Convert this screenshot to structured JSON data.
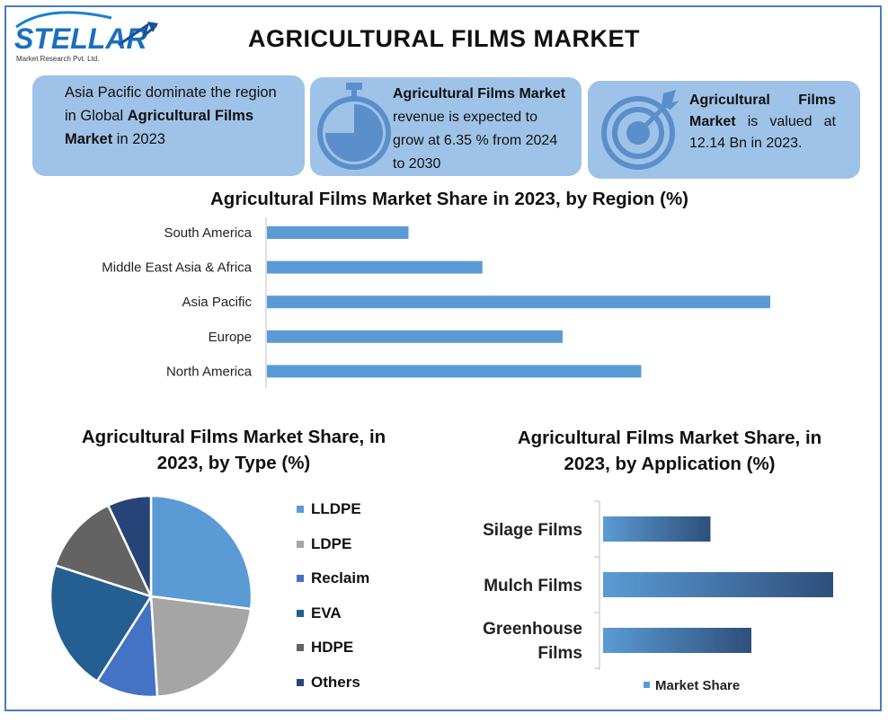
{
  "header": {
    "title": "AGRICULTURAL FILMS MARKET",
    "logo_text": "STELLAR",
    "logo_subtext": "Market Research Pvt. Ltd."
  },
  "cards": [
    {
      "pre": "Asia Pacific dominate the region in Global ",
      "bold": "Agricultural Films Market",
      "post": " in 2023"
    },
    {
      "bold": "Agricultural Films Market",
      "post": " revenue is expected to grow at 6.35 % from 2024 to 2030",
      "icon": "stopwatch-icon"
    },
    {
      "bold": "Agricultural Films Market",
      "post": " is valued at 12.14 Bn in 2023.",
      "icon": "target-icon"
    }
  ],
  "colors": {
    "frame": "#4a7cc0",
    "card": "#9fc3e8",
    "bar": "#5b9bd5",
    "icon": "#5a8fcb"
  },
  "chart_data": [
    {
      "type": "bar",
      "orientation": "horizontal",
      "title": "Agricultural Films Market Share in 2023, by Region (%)",
      "categories": [
        "South America",
        "Middle East Asia & Africa",
        "Asia Pacific",
        "Europe",
        "North America"
      ],
      "values": [
        9,
        13.7,
        32,
        18.8,
        23.8
      ],
      "xlim": [
        0,
        32
      ],
      "grid": false,
      "axis_labels_visible": false
    },
    {
      "type": "pie",
      "title": "Agricultural Films Market Share, in 2023, by Type (%)",
      "labels": [
        "LLDPE",
        "LDPE",
        "Reclaim",
        "EVA",
        "HDPE",
        "Others"
      ],
      "values": [
        27,
        22,
        10,
        21,
        13,
        7
      ],
      "colors": [
        "#5b9bd5",
        "#a5a5a5",
        "#4472c4",
        "#255e91",
        "#636363",
        "#264478"
      ],
      "legend_position": "right"
    },
    {
      "type": "bar",
      "orientation": "horizontal",
      "title": "Agricultural Films Market Share, in 2023, by Application (%)",
      "categories": [
        "Silage Films",
        "Mulch Films",
        "Greenhouse Films"
      ],
      "series": [
        {
          "name": "Market Share",
          "values": [
            21,
            45,
            29
          ]
        }
      ],
      "xlim": [
        0,
        45
      ],
      "legend_position": "bottom",
      "gradient": [
        "#5b9bd5",
        "#2e4f7a"
      ]
    }
  ]
}
